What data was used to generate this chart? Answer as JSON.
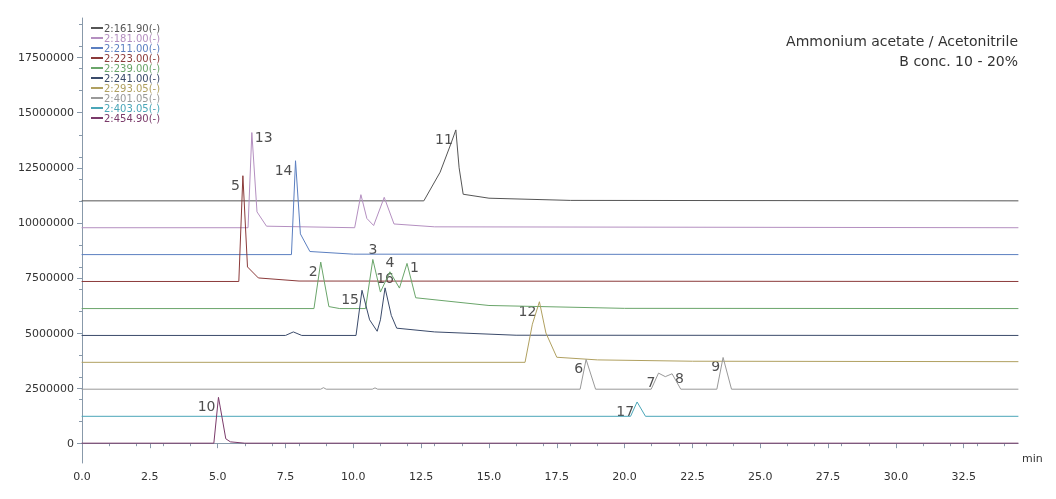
{
  "chart_data": {
    "type": "line",
    "xlabel": "min",
    "xlim": [
      0,
      34.5
    ],
    "ylim": [
      -900000,
      19300000
    ],
    "xticks": [
      {
        "value": 0,
        "label": "0.0"
      },
      {
        "value": 2.5,
        "label": "2.5"
      },
      {
        "value": 5,
        "label": "5.0"
      },
      {
        "value": 7.5,
        "label": "7.5"
      },
      {
        "value": 10,
        "label": "10.0"
      },
      {
        "value": 12.5,
        "label": "12.5"
      },
      {
        "value": 15,
        "label": "15.0"
      },
      {
        "value": 17.5,
        "label": "17.5"
      },
      {
        "value": 20,
        "label": "20.0"
      },
      {
        "value": 22.5,
        "label": "22.5"
      },
      {
        "value": 25,
        "label": "25.0"
      },
      {
        "value": 27.5,
        "label": "27.5"
      },
      {
        "value": 30,
        "label": "30.0"
      },
      {
        "value": 32.5,
        "label": "32.5"
      }
    ],
    "yticks": [
      0,
      2500000,
      5000000,
      7500000,
      10000000,
      12500000,
      15000000,
      17500000
    ],
    "grid": false,
    "legend": "top left",
    "marker": "none",
    "line_style": "solid",
    "series": [
      {
        "name": "2:161.90(-)",
        "color": "#555555",
        "x": [
          0,
          12.6,
          13.2,
          13.6,
          13.78,
          13.9,
          14.05,
          15,
          18,
          34.5
        ],
        "values": [
          11000000,
          11000000,
          12300000,
          13600000,
          14220000,
          12500000,
          11300000,
          11120000,
          11020000,
          11000000
        ]
      },
      {
        "name": "2:181.00(-)",
        "color": "#b48fc0",
        "x": [
          0,
          6.12,
          6.26,
          6.45,
          6.8,
          10.05,
          10.28,
          10.5,
          10.75,
          11.14,
          11.5,
          13,
          34.5
        ],
        "values": [
          9780000,
          9780000,
          14100000,
          10500000,
          9850000,
          9780000,
          11280000,
          10200000,
          9880000,
          11160000,
          9950000,
          9820000,
          9780000
        ]
      },
      {
        "name": "2:211.00(-)",
        "color": "#5b7fc0",
        "x": [
          0,
          7.72,
          7.87,
          8.05,
          8.4,
          10,
          34.5
        ],
        "values": [
          8560000,
          8560000,
          12820000,
          9500000,
          8700000,
          8580000,
          8560000
        ]
      },
      {
        "name": "2:223.00(-)",
        "color": "#8b3a3a",
        "x": [
          0,
          5.78,
          5.93,
          6.1,
          6.5,
          8,
          34.5
        ],
        "values": [
          7340000,
          7340000,
          12140000,
          8000000,
          7500000,
          7360000,
          7340000
        ]
      },
      {
        "name": "2:239.00(-)",
        "color": "#6aa56a",
        "x": [
          0,
          8.55,
          8.8,
          9.1,
          9.5,
          10.45,
          10.72,
          11.0,
          11.35,
          11.7,
          11.98,
          12.3,
          15,
          20,
          34.5
        ],
        "values": [
          6110000,
          6110000,
          8220000,
          6200000,
          6110000,
          6110000,
          8340000,
          6860000,
          7780000,
          7040000,
          8160000,
          6600000,
          6250000,
          6120000,
          6110000
        ]
      },
      {
        "name": "2:241.00(-)",
        "color": "#3a4a6a",
        "x": [
          0,
          7.5,
          7.79,
          8.1,
          10.1,
          10.32,
          10.6,
          10.88,
          11.0,
          11.17,
          11.4,
          11.6,
          13,
          16,
          34.5
        ],
        "values": [
          4890000,
          4890000,
          5050000,
          4890000,
          4890000,
          6940000,
          5600000,
          5080000,
          5600000,
          7050000,
          5800000,
          5220000,
          5050000,
          4900000,
          4890000
        ]
      },
      {
        "name": "2:293.05(-)",
        "color": "#b0a060",
        "x": [
          0,
          16.33,
          16.6,
          16.86,
          17.1,
          17.5,
          19,
          22.5,
          34.5
        ],
        "values": [
          3670000,
          3670000,
          5400000,
          6420000,
          5000000,
          3900000,
          3780000,
          3720000,
          3700000
        ]
      },
      {
        "name": "2:401.05(-)",
        "color": "#999999",
        "x": [
          0,
          8.8,
          8.9,
          9.0,
          10.7,
          10.8,
          10.9,
          18.36,
          18.58,
          18.93,
          20.98,
          21.25,
          21.5,
          21.75,
          22.07,
          23.4,
          23.63,
          23.94,
          34.5
        ],
        "values": [
          2450000,
          2450000,
          2520000,
          2450000,
          2450000,
          2510000,
          2450000,
          2450000,
          3800000,
          2450000,
          2450000,
          3180000,
          3020000,
          3150000,
          2450000,
          2450000,
          3890000,
          2450000,
          2450000
        ]
      },
      {
        "name": "2:403.05(-)",
        "color": "#4aa6b8",
        "x": [
          0,
          20.22,
          20.46,
          20.77,
          34.5
        ],
        "values": [
          1220000,
          1220000,
          1870000,
          1220000,
          1220000
        ]
      },
      {
        "name": "2:454.90(-)",
        "color": "#7a3a6a",
        "x": [
          0,
          4.86,
          5.03,
          5.1,
          5.3,
          5.47,
          6.0,
          34.5
        ],
        "values": [
          0,
          0,
          2080000,
          1600000,
          200000,
          60000,
          0,
          0
        ]
      }
    ],
    "annotations": [
      "Ammonium acetate / Acetonitrile",
      "B conc. 10 - 20%",
      {
        "text": "1",
        "x": 11.98,
        "y": 8160000
      },
      {
        "text": "2",
        "x": 8.8,
        "y": 8220000
      },
      {
        "text": "3",
        "x": 10.72,
        "y": 8340000
      },
      {
        "text": "4",
        "x": 11.35,
        "y": 7780000
      },
      {
        "text": "5",
        "x": 5.93,
        "y": 12140000
      },
      {
        "text": "6",
        "x": 18.58,
        "y": 3800000
      },
      {
        "text": "7",
        "x": 21.25,
        "y": 3180000
      },
      {
        "text": "8",
        "x": 21.75,
        "y": 3150000
      },
      {
        "text": "9",
        "x": 23.63,
        "y": 3890000
      },
      {
        "text": "10",
        "x": 5.03,
        "y": 2080000
      },
      {
        "text": "11",
        "x": 13.78,
        "y": 14220000
      },
      {
        "text": "12",
        "x": 16.86,
        "y": 6420000
      },
      {
        "text": "13",
        "x": 6.26,
        "y": 14100000
      },
      {
        "text": "14",
        "x": 7.87,
        "y": 12820000
      },
      {
        "text": "15",
        "x": 10.32,
        "y": 6940000
      },
      {
        "text": "16",
        "x": 11.17,
        "y": 7050000
      },
      {
        "text": "17",
        "x": 20.46,
        "y": 1870000
      }
    ]
  }
}
